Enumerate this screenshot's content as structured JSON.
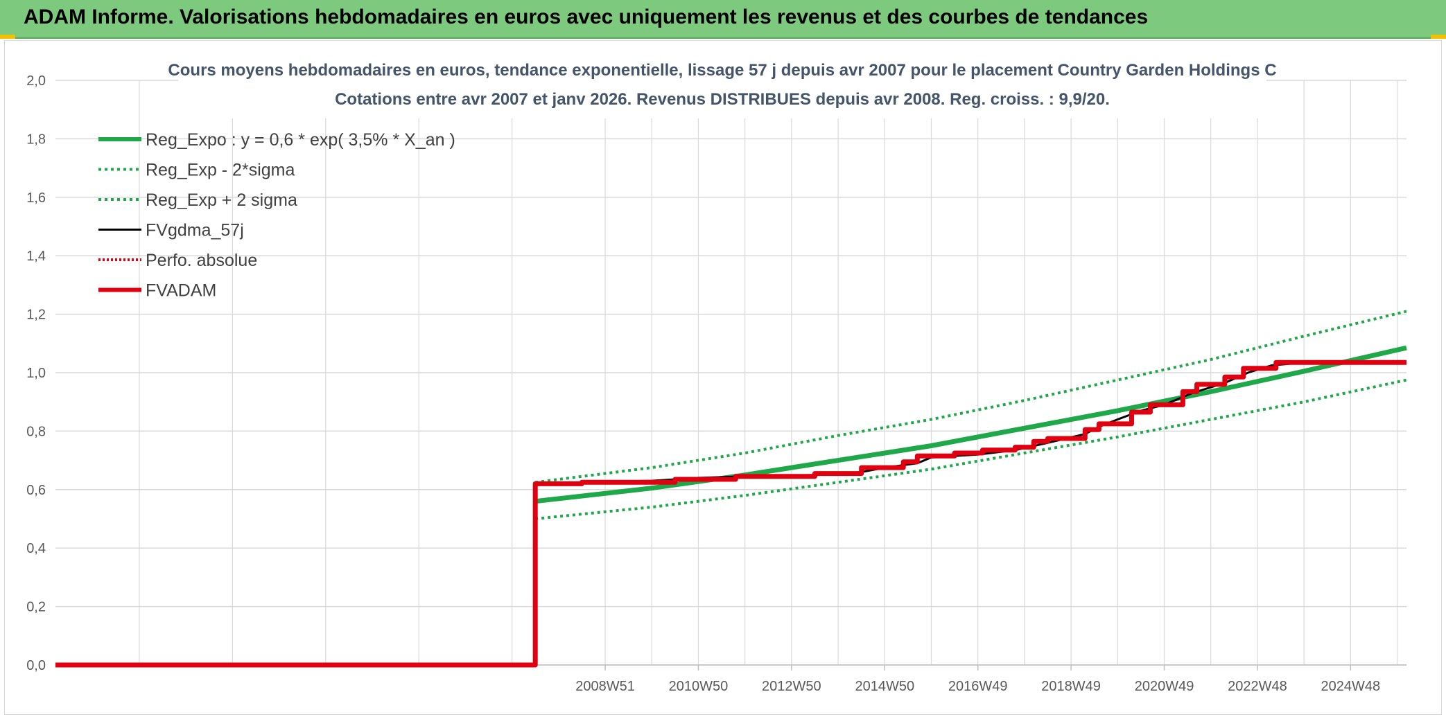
{
  "header": {
    "title": "ADAM Informe. Valorisations hebdomadaires en euros avec uniquement les revenus et des courbes de tendances"
  },
  "colors": {
    "header_bg": "#7dc97d",
    "trend": "#1fa84a",
    "fv_gdma": "#000000",
    "fvadam": "#e0000f",
    "perfo": "#e0000f",
    "grid": "#d9d9d9"
  },
  "chart_data": {
    "type": "line",
    "title": "Cours moyens hebdomadaires en euros, tendance exponentielle, lissage 57 j depuis avr 2007 pour le placement Country Garden Holdings C",
    "subtitle": "Cotations entre avr 2007 et janv 2026. Revenus DISTRIBUES depuis avr 2008. Reg. croiss. : 9,9/20.",
    "xlabel": "",
    "ylabel": "",
    "ylim": [
      0,
      2.0
    ],
    "xlim": [
      1997.2,
      2026.2
    ],
    "y_ticks": [
      "0,0",
      "0,2",
      "0,4",
      "0,6",
      "0,8",
      "1,0",
      "1,2",
      "1,4",
      "1,6",
      "1,8",
      "2,0"
    ],
    "x_ticks": [
      {
        "label": "2008W51",
        "x": 2009.0
      },
      {
        "label": "2010W50",
        "x": 2011.0
      },
      {
        "label": "2012W50",
        "x": 2013.0
      },
      {
        "label": "2014W50",
        "x": 2015.0
      },
      {
        "label": "2016W49",
        "x": 2017.0
      },
      {
        "label": "2018W49",
        "x": 2019.0
      },
      {
        "label": "2020W49",
        "x": 2021.0
      },
      {
        "label": "2022W48",
        "x": 2023.0
      },
      {
        "label": "2024W48",
        "x": 2025.0
      }
    ],
    "grid": true,
    "legend_position": "top-left",
    "series": [
      {
        "name": "Reg_Expo : y = 0,6 * exp( 3,5% *  X_an )",
        "style": "solid-thick",
        "color": "#1fa84a",
        "points": [
          [
            2007.5,
            0.56
          ],
          [
            2010,
            0.605
          ],
          [
            2012,
            0.65
          ],
          [
            2014,
            0.7
          ],
          [
            2016,
            0.75
          ],
          [
            2018,
            0.81
          ],
          [
            2020,
            0.87
          ],
          [
            2022,
            0.935
          ],
          [
            2024,
            1.005
          ],
          [
            2026.2,
            1.085
          ]
        ]
      },
      {
        "name": "Reg_Exp - 2*sigma",
        "style": "dotted",
        "color": "#1fa84a",
        "points": [
          [
            2007.5,
            0.5
          ],
          [
            2010,
            0.54
          ],
          [
            2012,
            0.58
          ],
          [
            2014,
            0.625
          ],
          [
            2016,
            0.67
          ],
          [
            2018,
            0.725
          ],
          [
            2020,
            0.78
          ],
          [
            2022,
            0.84
          ],
          [
            2024,
            0.9
          ],
          [
            2026.2,
            0.975
          ]
        ]
      },
      {
        "name": "Reg_Exp + 2 sigma",
        "style": "dotted",
        "color": "#1fa84a",
        "points": [
          [
            2007.5,
            0.625
          ],
          [
            2010,
            0.675
          ],
          [
            2012,
            0.725
          ],
          [
            2014,
            0.785
          ],
          [
            2016,
            0.84
          ],
          [
            2018,
            0.905
          ],
          [
            2020,
            0.975
          ],
          [
            2022,
            1.045
          ],
          [
            2024,
            1.125
          ],
          [
            2026.2,
            1.21
          ]
        ]
      },
      {
        "name": "FVgdma_57j",
        "style": "solid",
        "color": "#000000",
        "points": [
          [
            1997.2,
            0.0
          ],
          [
            2007.5,
            0.0
          ],
          [
            2007.5,
            0.62
          ],
          [
            2008.5,
            0.625
          ],
          [
            2010,
            0.63
          ],
          [
            2011,
            0.64
          ],
          [
            2012,
            0.645
          ],
          [
            2013.5,
            0.65
          ],
          [
            2014.5,
            0.66
          ],
          [
            2015,
            0.675
          ],
          [
            2015.7,
            0.69
          ],
          [
            2016,
            0.71
          ],
          [
            2017,
            0.72
          ],
          [
            2017.8,
            0.735
          ],
          [
            2018.5,
            0.76
          ],
          [
            2019.3,
            0.79
          ],
          [
            2019.6,
            0.815
          ],
          [
            2020,
            0.84
          ],
          [
            2020.5,
            0.87
          ],
          [
            2021,
            0.89
          ],
          [
            2021.6,
            0.93
          ],
          [
            2022.3,
            0.965
          ],
          [
            2022.8,
            1.0
          ],
          [
            2023.3,
            1.025
          ],
          [
            2024,
            1.035
          ],
          [
            2026.2,
            1.035
          ]
        ]
      },
      {
        "name": "Perfo. absolue",
        "style": "dotted",
        "color": "#e0000f",
        "points": []
      },
      {
        "name": "FVADAM",
        "style": "solid-thick",
        "color": "#e0000f",
        "points": [
          [
            1997.2,
            0.0
          ],
          [
            2007.5,
            0.0
          ],
          [
            2007.5,
            0.62
          ],
          [
            2008.5,
            0.62
          ],
          [
            2008.5,
            0.625
          ],
          [
            2010.5,
            0.625
          ],
          [
            2010.5,
            0.635
          ],
          [
            2011.8,
            0.635
          ],
          [
            2011.8,
            0.645
          ],
          [
            2013.5,
            0.645
          ],
          [
            2013.5,
            0.655
          ],
          [
            2014.5,
            0.655
          ],
          [
            2014.5,
            0.675
          ],
          [
            2015.4,
            0.675
          ],
          [
            2015.4,
            0.695
          ],
          [
            2015.7,
            0.695
          ],
          [
            2015.7,
            0.715
          ],
          [
            2016.5,
            0.715
          ],
          [
            2016.5,
            0.725
          ],
          [
            2017.1,
            0.725
          ],
          [
            2017.1,
            0.735
          ],
          [
            2017.8,
            0.735
          ],
          [
            2017.8,
            0.745
          ],
          [
            2018.2,
            0.745
          ],
          [
            2018.2,
            0.765
          ],
          [
            2018.5,
            0.765
          ],
          [
            2018.5,
            0.775
          ],
          [
            2019.3,
            0.775
          ],
          [
            2019.3,
            0.805
          ],
          [
            2019.6,
            0.805
          ],
          [
            2019.6,
            0.825
          ],
          [
            2020.3,
            0.825
          ],
          [
            2020.3,
            0.865
          ],
          [
            2020.7,
            0.865
          ],
          [
            2020.7,
            0.89
          ],
          [
            2021.4,
            0.89
          ],
          [
            2021.4,
            0.935
          ],
          [
            2021.7,
            0.935
          ],
          [
            2021.7,
            0.96
          ],
          [
            2022.3,
            0.96
          ],
          [
            2022.3,
            0.985
          ],
          [
            2022.7,
            0.985
          ],
          [
            2022.7,
            1.015
          ],
          [
            2023.4,
            1.015
          ],
          [
            2023.4,
            1.035
          ],
          [
            2026.2,
            1.035
          ]
        ]
      }
    ]
  }
}
